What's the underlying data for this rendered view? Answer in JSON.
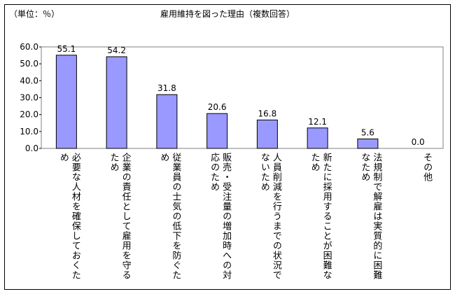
{
  "unit_label": "（単位：％）",
  "colors": {
    "bar_fill": "#9999ff",
    "bar_stroke": "#000000",
    "plot_border": "#808080"
  },
  "chart_data": {
    "type": "bar",
    "title": "雇用維持を図った理由（複数回答）",
    "categories": [
      "必要な人材を確保しておくため",
      "企業の責任として雇用を守るため",
      "従業員の士気の低下を防ぐため",
      "販売・受注量の増加時への対応のため",
      "人員削減を行うまでの状況でないため",
      "新たに採用することが困難なため",
      "法規制で解雇は実質的に困難なため",
      "その他"
    ],
    "values": [
      55.1,
      54.2,
      31.8,
      20.6,
      16.8,
      12.1,
      5.6,
      0.0
    ],
    "value_labels": [
      "55.1",
      "54.2",
      "31.8",
      "20.6",
      "16.8",
      "12.1",
      "5.6",
      "0.0"
    ],
    "yticks": [
      "0.0",
      "10.0",
      "20.0",
      "30.0",
      "40.0",
      "50.0",
      "60.0"
    ],
    "ylim": [
      0,
      60
    ],
    "grid": false,
    "legend": "none"
  }
}
